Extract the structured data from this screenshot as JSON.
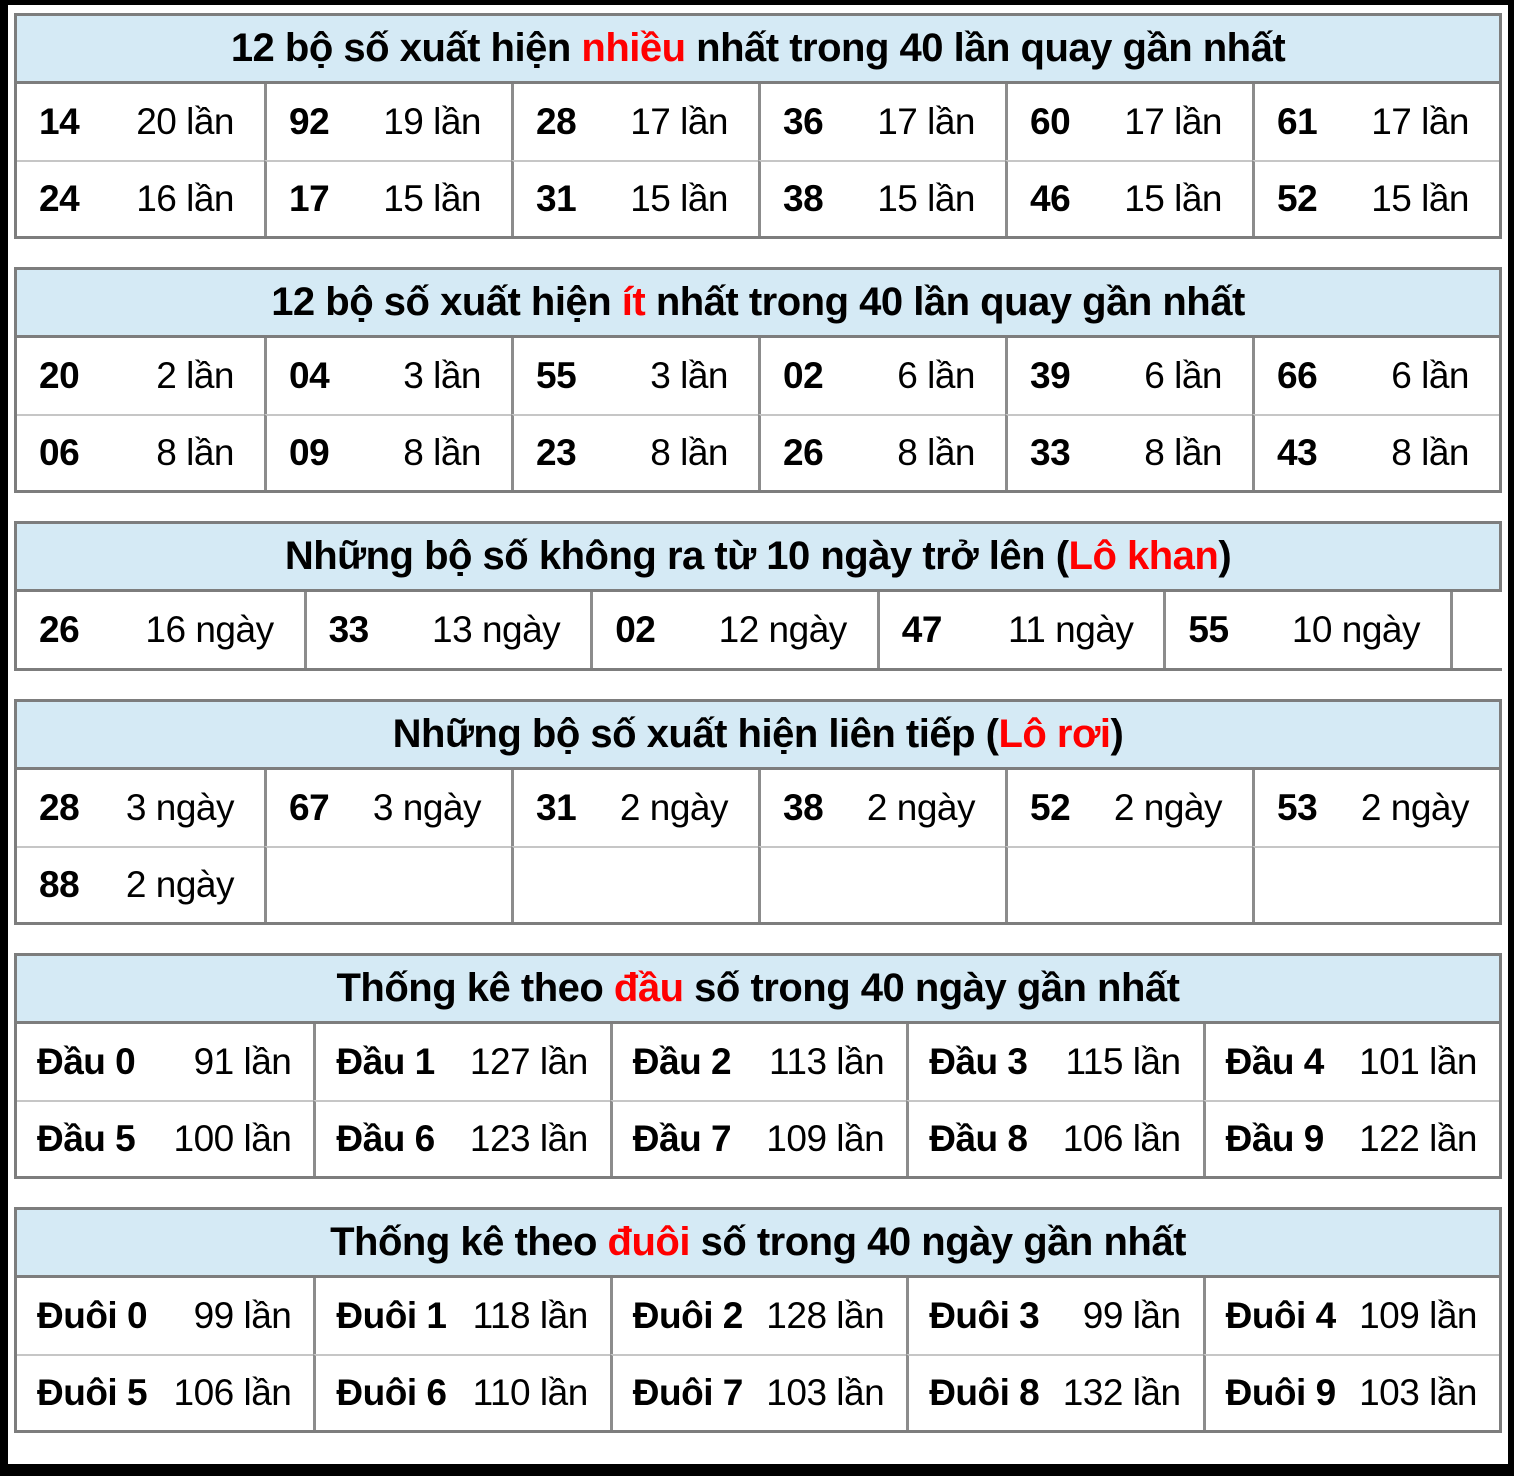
{
  "page": {
    "colors": {
      "frame_black": "#000000",
      "page_white": "#ffffff",
      "header_bg": "#d5eaf5",
      "highlight_red": "#ff0000",
      "border_outer": "#7d7d7d",
      "border_cell_vertical": "#8c8c8c",
      "border_cell_horizontal": "#c6c6c6"
    }
  },
  "tables": [
    {
      "id": "most-frequent",
      "title": {
        "pre": "12 bộ số xuất hiện ",
        "red": "nhiều",
        "post": " nhất trong 40 lần quay gần nhất"
      },
      "rows": [
        [
          {
            "num": "14",
            "count": "20 lần"
          },
          {
            "num": "92",
            "count": "19 lần"
          },
          {
            "num": "28",
            "count": "17 lần"
          },
          {
            "num": "36",
            "count": "17 lần"
          },
          {
            "num": "60",
            "count": "17 lần"
          },
          {
            "num": "61",
            "count": "17 lần"
          }
        ],
        [
          {
            "num": "24",
            "count": "16 lần"
          },
          {
            "num": "17",
            "count": "15 lần"
          },
          {
            "num": "31",
            "count": "15 lần"
          },
          {
            "num": "38",
            "count": "15 lần"
          },
          {
            "num": "46",
            "count": "15 lần"
          },
          {
            "num": "52",
            "count": "15 lần"
          }
        ]
      ]
    },
    {
      "id": "least-frequent",
      "title": {
        "pre": "12 bộ số xuất hiện ",
        "red": "ít",
        "post": " nhất trong 40 lần quay gần nhất"
      },
      "rows": [
        [
          {
            "num": "20",
            "count": "2 lần"
          },
          {
            "num": "04",
            "count": "3 lần"
          },
          {
            "num": "55",
            "count": "3 lần"
          },
          {
            "num": "02",
            "count": "6 lần"
          },
          {
            "num": "39",
            "count": "6 lần"
          },
          {
            "num": "66",
            "count": "6 lần"
          }
        ],
        [
          {
            "num": "06",
            "count": "8 lần"
          },
          {
            "num": "09",
            "count": "8 lần"
          },
          {
            "num": "23",
            "count": "8 lần"
          },
          {
            "num": "26",
            "count": "8 lần"
          },
          {
            "num": "33",
            "count": "8 lần"
          },
          {
            "num": "43",
            "count": "8 lần"
          }
        ]
      ]
    },
    {
      "id": "lo-khan",
      "title": {
        "pre": "Những bộ số không ra từ 10 ngày trở lên (",
        "red": "Lô khan",
        "post": ")"
      },
      "rows": [
        [
          {
            "num": "26",
            "count": "16 ngày"
          },
          {
            "num": "33",
            "count": "13 ngày"
          },
          {
            "num": "02",
            "count": "12 ngày"
          },
          {
            "num": "47",
            "count": "11 ngày"
          },
          {
            "num": "55",
            "count": "10 ngày"
          },
          {
            "num": "",
            "count": ""
          }
        ]
      ]
    },
    {
      "id": "lo-roi",
      "title": {
        "pre": "Những bộ số xuất hiện liên tiếp (",
        "red": "Lô rơi",
        "post": ")"
      },
      "rows": [
        [
          {
            "num": "28",
            "count": "3 ngày"
          },
          {
            "num": "67",
            "count": "3 ngày"
          },
          {
            "num": "31",
            "count": "2 ngày"
          },
          {
            "num": "38",
            "count": "2 ngày"
          },
          {
            "num": "52",
            "count": "2 ngày"
          },
          {
            "num": "53",
            "count": "2 ngày"
          }
        ],
        [
          {
            "num": "88",
            "count": "2 ngày"
          },
          {
            "num": "",
            "count": ""
          },
          {
            "num": "",
            "count": ""
          },
          {
            "num": "",
            "count": ""
          },
          {
            "num": "",
            "count": ""
          },
          {
            "num": "",
            "count": ""
          }
        ]
      ]
    },
    {
      "id": "dau-so",
      "title": {
        "pre": "Thống kê theo ",
        "red": "đầu",
        "post": " số trong 40 ngày gần nhất"
      },
      "rows": [
        [
          {
            "num": "Đầu 0",
            "count": "91 lần"
          },
          {
            "num": "Đầu 1",
            "count": "127 lần"
          },
          {
            "num": "Đầu 2",
            "count": "113 lần"
          },
          {
            "num": "Đầu 3",
            "count": "115 lần"
          },
          {
            "num": "Đầu 4",
            "count": "101 lần"
          }
        ],
        [
          {
            "num": "Đầu 5",
            "count": "100 lần"
          },
          {
            "num": "Đầu 6",
            "count": "123 lần"
          },
          {
            "num": "Đầu 7",
            "count": "109 lần"
          },
          {
            "num": "Đầu 8",
            "count": "106 lần"
          },
          {
            "num": "Đầu 9",
            "count": "122 lần"
          }
        ]
      ]
    },
    {
      "id": "duoi-so",
      "title": {
        "pre": "Thống kê theo ",
        "red": "đuôi",
        "post": " số trong 40 ngày gần nhất"
      },
      "rows": [
        [
          {
            "num": "Đuôi 0",
            "count": "99 lần"
          },
          {
            "num": "Đuôi 1",
            "count": "118 lần"
          },
          {
            "num": "Đuôi 2",
            "count": "128 lần"
          },
          {
            "num": "Đuôi 3",
            "count": "99 lần"
          },
          {
            "num": "Đuôi 4",
            "count": "109 lần"
          }
        ],
        [
          {
            "num": "Đuôi 5",
            "count": "106 lần"
          },
          {
            "num": "Đuôi 6",
            "count": "110 lần"
          },
          {
            "num": "Đuôi 7",
            "count": "103 lần"
          },
          {
            "num": "Đuôi 8",
            "count": "132 lần"
          },
          {
            "num": "Đuôi 9",
            "count": "103 lần"
          }
        ]
      ]
    }
  ]
}
